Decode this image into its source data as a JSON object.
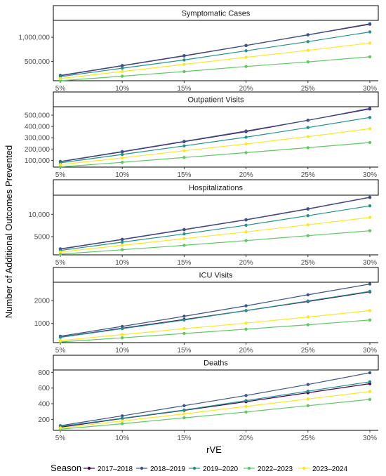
{
  "chart_data": {
    "type": "line",
    "xlabel": "rVE",
    "ylabel": "Number of Additional Outcomes Prevented",
    "x": [
      "5%",
      "10%",
      "15%",
      "20%",
      "25%",
      "30%"
    ],
    "legend": {
      "title": "Season",
      "placement": "bottom"
    },
    "grid": false,
    "series_colors": {
      "2017–2018": "#440154",
      "2018–2019": "#3b528b",
      "2019–2020": "#21918c",
      "2022–2023": "#5ec962",
      "2023–2024": "#fde725"
    },
    "panels": [
      {
        "title": "Symptomatic Cases",
        "ylim": [
          100000,
          1350000
        ],
        "yticks": [
          500000,
          1000000
        ],
        "ytick_labels": [
          "500,000",
          "1,000,000"
        ],
        "series": [
          {
            "name": "2017–2018",
            "values": [
              205000,
              410000,
              615000,
              830000,
              1050000,
              1270000
            ]
          },
          {
            "name": "2018–2019",
            "values": [
              210000,
              415000,
              620000,
              830000,
              1050000,
              1280000
            ]
          },
          {
            "name": "2019–2020",
            "values": [
              185000,
              360000,
              530000,
              720000,
              910000,
              1110000
            ]
          },
          {
            "name": "2022–2023",
            "values": [
              100000,
              195000,
              290000,
              395000,
              490000,
              595000
            ]
          },
          {
            "name": "2023–2024",
            "values": [
              145000,
              290000,
              440000,
              585000,
              730000,
              880000
            ]
          }
        ]
      },
      {
        "title": "Outpatient Visits",
        "ylim": [
          40000,
          575000
        ],
        "yticks": [
          100000,
          200000,
          300000,
          400000,
          500000
        ],
        "ytick_labels": [
          "100,000",
          "200,000",
          "300,000",
          "400,000",
          "500,000"
        ],
        "series": [
          {
            "name": "2017–2018",
            "values": [
              88000,
              175000,
              265000,
              355000,
              455000,
              555000
            ]
          },
          {
            "name": "2018–2019",
            "values": [
              90000,
              178000,
              268000,
              360000,
              455000,
              560000
            ]
          },
          {
            "name": "2019–2020",
            "values": [
              78000,
              152000,
              228000,
              305000,
              390000,
              480000
            ]
          },
          {
            "name": "2022–2023",
            "values": [
              42000,
              82000,
              125000,
              168000,
              212000,
              258000
            ]
          },
          {
            "name": "2023–2024",
            "values": [
              62000,
              122000,
              185000,
              245000,
              310000,
              380000
            ]
          }
        ]
      },
      {
        "title": "Hospitalizations",
        "ylim": [
          900,
          14300
        ],
        "yticks": [
          5000,
          10000
        ],
        "ytick_labels": [
          "5000",
          "10,000"
        ],
        "series": [
          {
            "name": "2017–2018",
            "values": [
              2200,
              4350,
              6550,
              8750,
              11200,
              13800
            ]
          },
          {
            "name": "2018–2019",
            "values": [
              2250,
              4400,
              6600,
              8800,
              11250,
              13850
            ]
          },
          {
            "name": "2019–2020",
            "values": [
              1900,
              3750,
              5600,
              7550,
              9700,
              11900
            ]
          },
          {
            "name": "2022–2023",
            "values": [
              1050,
              2050,
              3050,
              4100,
              5200,
              6300
            ]
          },
          {
            "name": "2023–2024",
            "values": [
              1550,
              3050,
              4550,
              6050,
              7650,
              9300
            ]
          }
        ]
      },
      {
        "title": "ICU Visits",
        "ylim": [
          160,
          2800
        ],
        "yticks": [
          1000,
          2000
        ],
        "ytick_labels": [
          "1000",
          "2000"
        ],
        "series": [
          {
            "name": "2017–2018",
            "values": [
              400,
              790,
              1170,
              1560,
              1960,
              2380
            ]
          },
          {
            "name": "2018–2019",
            "values": [
              440,
              870,
              1310,
              1770,
              2250,
              2720
            ]
          },
          {
            "name": "2019–2020",
            "values": [
              390,
              770,
              1150,
              1560,
              1980,
              2400
            ]
          },
          {
            "name": "2022–2023",
            "values": [
              190,
              370,
              560,
              750,
              940,
              1150
            ]
          },
          {
            "name": "2023–2024",
            "values": [
              250,
              510,
              770,
              1010,
              1280,
              1560
            ]
          }
        ]
      },
      {
        "title": "Deaths",
        "ylim": [
          60,
          830
        ],
        "yticks": [
          200,
          400,
          600,
          800
        ],
        "ytick_labels": [
          "200",
          "400",
          "600",
          "800"
        ],
        "series": [
          {
            "name": "2017–2018",
            "values": [
              100,
              210,
              315,
              425,
              540,
              655
            ]
          },
          {
            "name": "2018–2019",
            "values": [
              120,
              245,
              375,
              505,
              645,
              795
            ]
          },
          {
            "name": "2019–2020",
            "values": [
              110,
              215,
              320,
              440,
              560,
              680
            ]
          },
          {
            "name": "2022–2023",
            "values": [
              75,
              145,
              220,
              295,
              375,
              455
            ]
          },
          {
            "name": "2023–2024",
            "values": [
              90,
              180,
              270,
              365,
              460,
              555
            ]
          }
        ]
      }
    ]
  }
}
